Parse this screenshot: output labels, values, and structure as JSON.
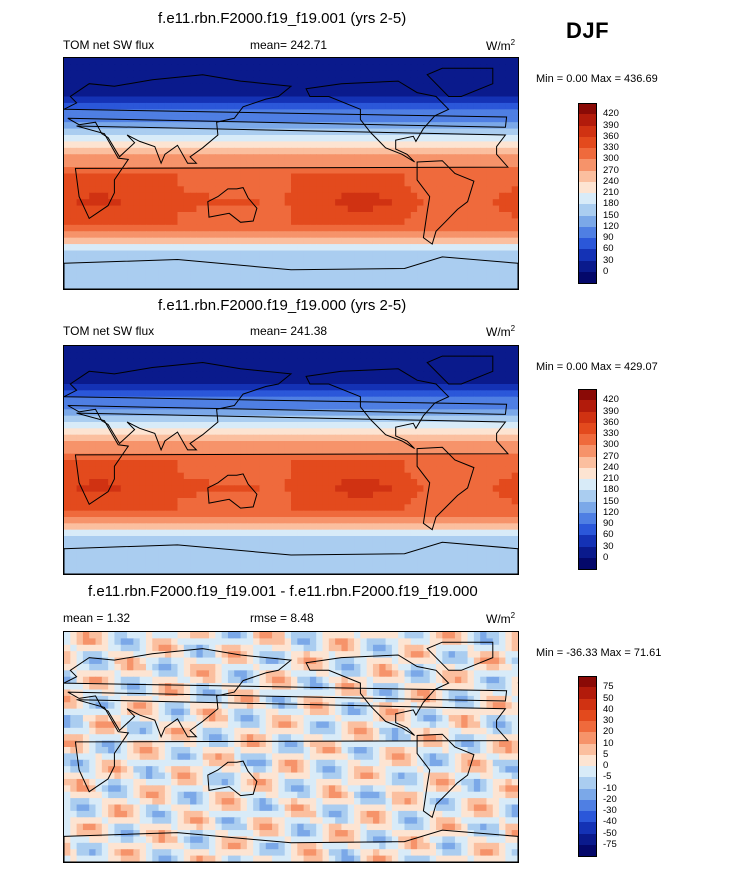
{
  "season": "DJF",
  "units_superscript": "2",
  "panels": [
    {
      "title": "f.e11.rbn.F2000.f19_f19.001 (yrs 2-5)",
      "left_label": "TOM net SW flux",
      "mean_text": "mean= 242.71",
      "units_base": "W/m",
      "range_text": "Min =    0.00 Max = 436.69",
      "kind": "abs"
    },
    {
      "title": "f.e11.rbn.F2000.f19_f19.000 (yrs 2-5)",
      "left_label": "TOM net SW flux",
      "mean_text": "mean= 241.38",
      "units_base": "W/m",
      "range_text": "Min =    0.00 Max = 429.07",
      "kind": "abs"
    },
    {
      "title": "f.e11.rbn.F2000.f19_f19.001 - f.e11.rbn.F2000.f19_f19.000",
      "left_label": "mean =    1.32",
      "mean_text": "rmse =    8.48",
      "units_base": "W/m",
      "range_text": "Min = -36.33 Max =  71.61",
      "kind": "diff"
    }
  ],
  "colorbar_abs": {
    "labels": [
      "420",
      "390",
      "360",
      "330",
      "300",
      "270",
      "240",
      "210",
      "180",
      "150",
      "120",
      "90",
      "60",
      "30",
      "0"
    ],
    "colors": [
      "#8a0a06",
      "#b21b0b",
      "#d03212",
      "#e34a1d",
      "#ef6a3c",
      "#f6936a",
      "#fbbf9f",
      "#fde4d2",
      "#d8ebf8",
      "#aacdf0",
      "#7ba8e8",
      "#4f7fe3",
      "#2b57d9",
      "#1432b5",
      "#0a1a8c",
      "#04086a"
    ]
  },
  "colorbar_diff": {
    "labels": [
      "75",
      "50",
      "40",
      "30",
      "20",
      "10",
      "5",
      "0",
      "-5",
      "-10",
      "-20",
      "-30",
      "-40",
      "-50",
      "-75"
    ],
    "colors": [
      "#8a0a06",
      "#b21b0b",
      "#d03212",
      "#e34a1d",
      "#ef6a3c",
      "#f6936a",
      "#fbbf9f",
      "#fde4d2",
      "#d8ebf8",
      "#aacdf0",
      "#7ba8e8",
      "#4f7fe3",
      "#2b57d9",
      "#1432b5",
      "#0a1a8c",
      "#04086a"
    ]
  }
}
